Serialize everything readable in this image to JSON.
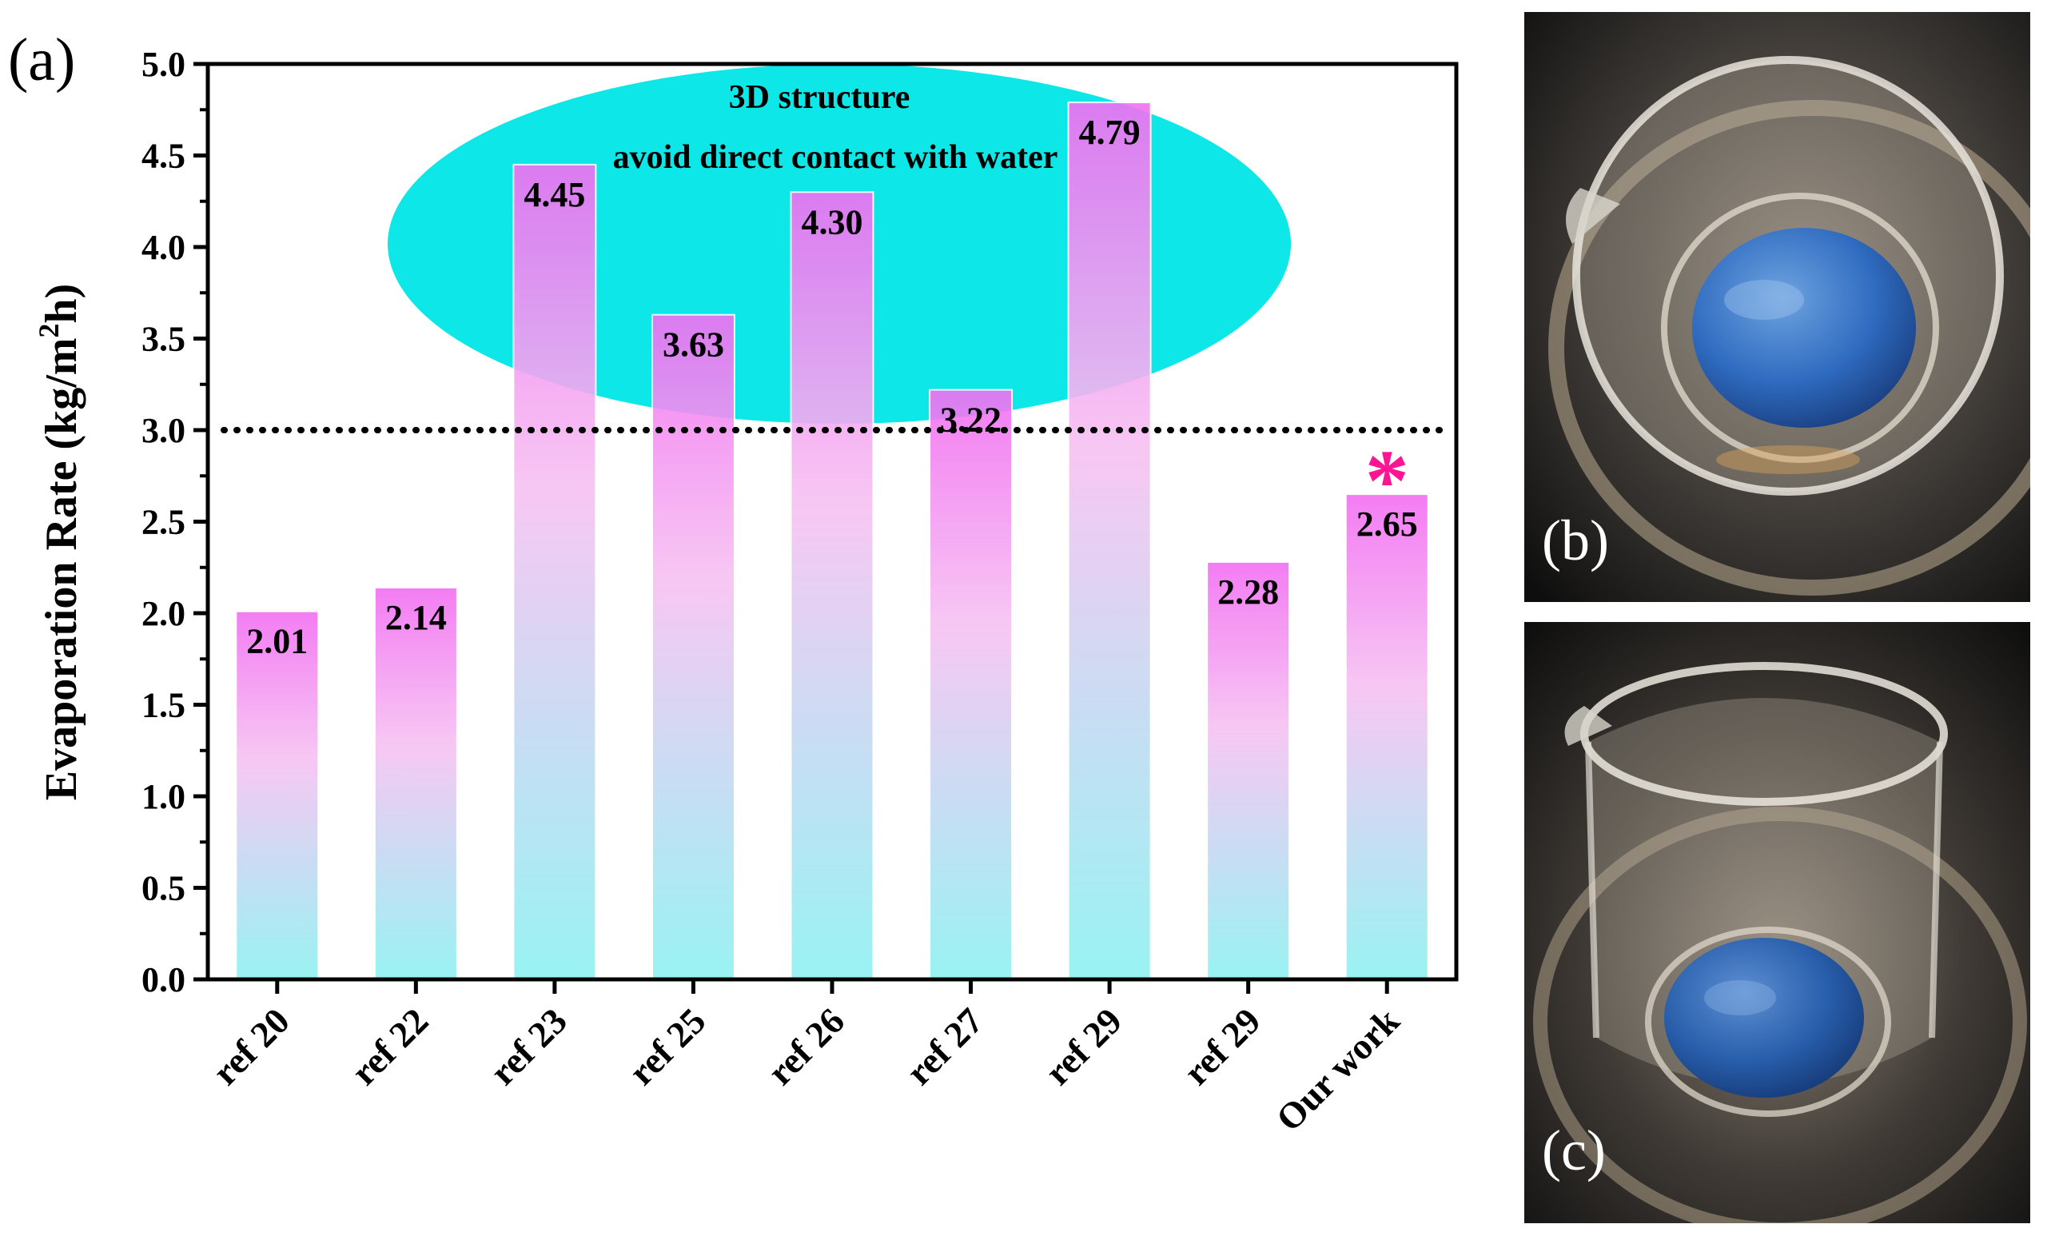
{
  "panel_labels": {
    "a": "(a)",
    "b": "(b)",
    "c": "(c)"
  },
  "photo_icons": {
    "b": "beaker-hydrogel-photo-icon",
    "c": "beaker-hydrogel-photo-icon"
  },
  "colors": {
    "bar_top": "#f26ff2",
    "bar_mid": "#f7c2f2",
    "bar_bottom": "#8ef2f2",
    "ellipse": "#00e6e6",
    "asterisk": "#ff1493",
    "axis": "#000000"
  },
  "chart_data": {
    "type": "bar",
    "title": "",
    "xlabel": "",
    "ylabel_main": "Evaporation Rate (kg/m",
    "ylabel_sup": "2",
    "ylabel_end": "h)",
    "categories": [
      "ref 20",
      "ref 22",
      "ref 23",
      "ref 25",
      "ref 26",
      "ref 27",
      "ref 29",
      "ref 29",
      "Our work"
    ],
    "values": [
      2.01,
      2.14,
      4.45,
      3.63,
      4.3,
      3.22,
      4.79,
      2.28,
      2.65
    ],
    "value_labels": [
      "2.01",
      "2.14",
      "4.45",
      "3.63",
      "4.30",
      "3.22",
      "4.79",
      "2.28",
      "2.65"
    ],
    "ylim": [
      0,
      5.0
    ],
    "yticks": [
      "0.0",
      "0.5",
      "1.0",
      "1.5",
      "2.0",
      "2.5",
      "3.0",
      "3.5",
      "4.0",
      "4.5",
      "5.0"
    ],
    "reference_line": 3.0,
    "highlight_marker": "*",
    "highlight_index": 8,
    "annotation": {
      "line1": "3D structure",
      "line2": "avoid direct contact with water"
    }
  }
}
